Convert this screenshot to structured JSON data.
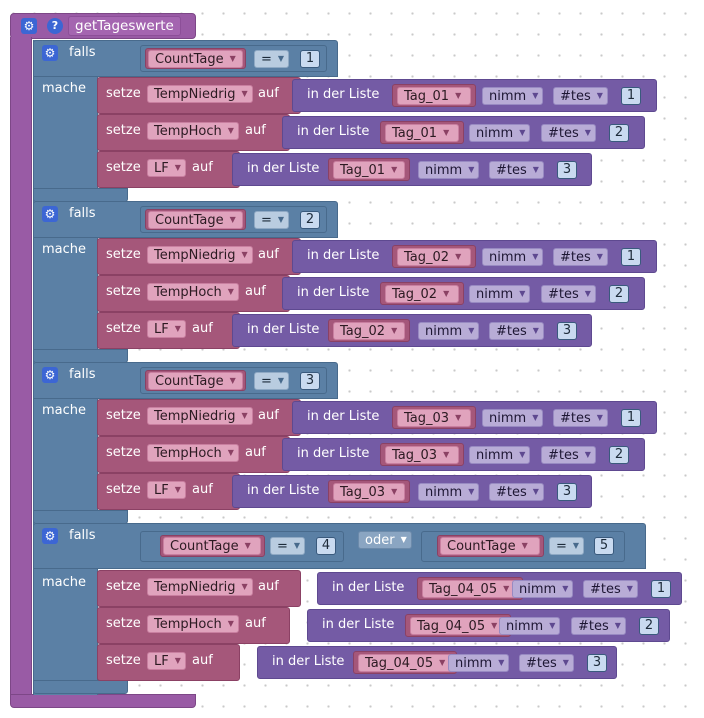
{
  "procedure": {
    "name": "getTageswerte",
    "gear_icon": "gear-icon",
    "help_icon": "help-icon",
    "help_glyph": "?"
  },
  "labels": {
    "falls": "falls",
    "mache": "mache",
    "setze": "setze",
    "auf": "auf",
    "in_der_liste": "in der Liste",
    "oder": "oder"
  },
  "groups": [
    {
      "var": "CountTage",
      "op": "=",
      "value": "1",
      "rows": [
        {
          "var": "TempNiedrig",
          "list": "Tag_01",
          "mode": "nimm",
          "pos": "#tes",
          "index": "1"
        },
        {
          "var": "TempHoch",
          "list": "Tag_01",
          "mode": "nimm",
          "pos": "#tes",
          "index": "2"
        },
        {
          "var": "LF",
          "list": "Tag_01",
          "mode": "nimm",
          "pos": "#tes",
          "index": "3"
        }
      ]
    },
    {
      "var": "CountTage",
      "op": "=",
      "value": "2",
      "rows": [
        {
          "var": "TempNiedrig",
          "list": "Tag_02",
          "mode": "nimm",
          "pos": "#tes",
          "index": "1"
        },
        {
          "var": "TempHoch",
          "list": "Tag_02",
          "mode": "nimm",
          "pos": "#tes",
          "index": "2"
        },
        {
          "var": "LF",
          "list": "Tag_02",
          "mode": "nimm",
          "pos": "#tes",
          "index": "3"
        }
      ]
    },
    {
      "var": "CountTage",
      "op": "=",
      "value": "3",
      "rows": [
        {
          "var": "TempNiedrig",
          "list": "Tag_03",
          "mode": "nimm",
          "pos": "#tes",
          "index": "1"
        },
        {
          "var": "TempHoch",
          "list": "Tag_03",
          "mode": "nimm",
          "pos": "#tes",
          "index": "2"
        },
        {
          "var": "LF",
          "list": "Tag_03",
          "mode": "nimm",
          "pos": "#tes",
          "index": "3"
        }
      ]
    },
    {
      "var": "CountTage",
      "op": "=",
      "value": "4",
      "var_b": "CountTage",
      "op_b": "=",
      "value_b": "5",
      "rows": [
        {
          "var": "TempNiedrig",
          "list": "Tag_04_05",
          "mode": "nimm",
          "pos": "#tes",
          "index": "1"
        },
        {
          "var": "TempHoch",
          "list": "Tag_04_05",
          "mode": "nimm",
          "pos": "#tes",
          "index": "2"
        },
        {
          "var": "LF",
          "list": "Tag_04_05",
          "mode": "nimm",
          "pos": "#tes",
          "index": "3"
        }
      ]
    }
  ]
}
